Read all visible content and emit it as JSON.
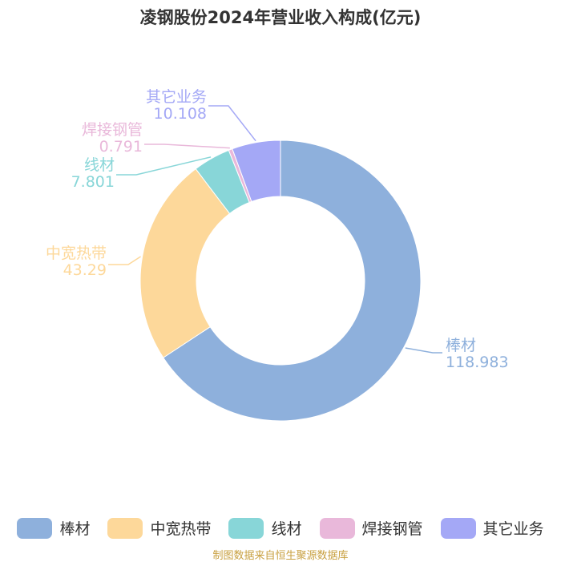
{
  "chart_data": {
    "type": "pie",
    "title": "凌钢股份2024年营业收入构成(亿元)",
    "categories": [
      "棒材",
      "中宽热带",
      "线材",
      "焊接钢管",
      "其它业务"
    ],
    "values": [
      118.983,
      43.29,
      7.801,
      0.791,
      10.108
    ],
    "value_labels": [
      "118.983",
      "43.29",
      "7.801",
      "0.791",
      "10.108"
    ],
    "colors": [
      "#8eb0dc",
      "#fdd89a",
      "#88d6d8",
      "#e9b8da",
      "#a4a8f6"
    ],
    "legend_position": "bottom",
    "donut": true
  },
  "source_note": "制图数据来自恒生聚源数据库"
}
